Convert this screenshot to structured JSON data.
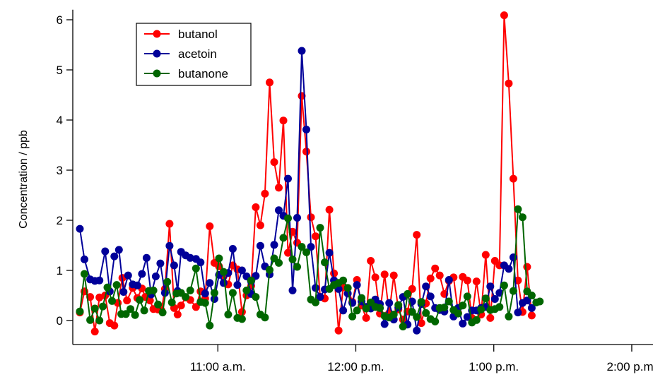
{
  "chart_data": {
    "type": "line",
    "ylabel": "Concentration / ppb",
    "xlabel": "",
    "ylim": [
      -0.4,
      6.2
    ],
    "yticks": [
      0,
      1,
      2,
      3,
      4,
      5,
      6
    ],
    "xlim_minutes": [
      0,
      252
    ],
    "xticks": [
      {
        "minute": 60,
        "label": "11:00 a.m."
      },
      {
        "minute": 120,
        "label": "12:00 p.m."
      },
      {
        "minute": 180,
        "label": "1:00 p.m."
      },
      {
        "minute": 240,
        "label": "2:00 p.m."
      }
    ],
    "grid": false,
    "legend_position": "top-left",
    "series": [
      {
        "name": "butanol",
        "color": "#ff0000",
        "points": [
          [
            0,
            0.16
          ],
          [
            2,
            0.58
          ],
          [
            4.5,
            0.47
          ],
          [
            6.5,
            -0.22
          ],
          [
            8.5,
            0.46
          ],
          [
            11,
            0.5
          ],
          [
            13,
            -0.05
          ],
          [
            15,
            -0.1
          ],
          [
            16.5,
            0.35
          ],
          [
            18.5,
            0.85
          ],
          [
            20.5,
            0.4
          ],
          [
            23,
            0.65
          ],
          [
            25,
            0.45
          ],
          [
            27,
            0.64
          ],
          [
            28.5,
            0.47
          ],
          [
            30.5,
            0.4
          ],
          [
            32,
            0.23
          ],
          [
            34,
            0.22
          ],
          [
            35.5,
            0.2
          ],
          [
            37,
            0.63
          ],
          [
            39,
            1.93
          ],
          [
            41,
            0.25
          ],
          [
            42.5,
            0.12
          ],
          [
            44,
            0.3
          ],
          [
            46,
            0.46
          ],
          [
            48,
            0.41
          ],
          [
            50.5,
            0.27
          ],
          [
            52.5,
            0.58
          ],
          [
            54.5,
            0.44
          ],
          [
            56.5,
            1.88
          ],
          [
            58.5,
            1.15
          ],
          [
            60.5,
            1.08
          ],
          [
            62.5,
            0.88
          ],
          [
            64.5,
            0.72
          ],
          [
            66.5,
            1.1
          ],
          [
            68.5,
            1.02
          ],
          [
            70.5,
            0.17
          ],
          [
            72.5,
            0.5
          ],
          [
            74.5,
            0.69
          ],
          [
            76.5,
            2.26
          ],
          [
            78.5,
            1.9
          ],
          [
            80.5,
            2.53
          ],
          [
            82.5,
            4.75
          ],
          [
            84.5,
            3.16
          ],
          [
            86.5,
            2.65
          ],
          [
            88.5,
            3.99
          ],
          [
            90.5,
            1.35
          ],
          [
            92.5,
            1.77
          ],
          [
            94.5,
            1.55
          ],
          [
            96.5,
            4.48
          ],
          [
            98.5,
            3.37
          ],
          [
            100.5,
            2.06
          ],
          [
            102.5,
            1.68
          ],
          [
            104.5,
            0.47
          ],
          [
            106.5,
            0.44
          ],
          [
            108.5,
            2.21
          ],
          [
            110.5,
            0.94
          ],
          [
            112.5,
            -0.2
          ],
          [
            114.5,
            0.66
          ],
          [
            116.5,
            0.65
          ],
          [
            118.5,
            0.37
          ],
          [
            120.5,
            0.81
          ],
          [
            122.5,
            0.3
          ],
          [
            124.5,
            0.05
          ],
          [
            126.5,
            1.19
          ],
          [
            128.5,
            0.86
          ],
          [
            130.5,
            0.14
          ],
          [
            132.5,
            0.92
          ],
          [
            134.5,
            0.15
          ],
          [
            136.5,
            0.9
          ],
          [
            138.5,
            0.22
          ],
          [
            140.5,
            0.02
          ],
          [
            142.5,
            0.18
          ],
          [
            144.5,
            0.63
          ],
          [
            146.5,
            1.71
          ],
          [
            148.5,
            -0.05
          ],
          [
            150.5,
            0.34
          ],
          [
            152.5,
            0.84
          ],
          [
            154.5,
            1.04
          ],
          [
            156.5,
            0.9
          ],
          [
            158.5,
            0.53
          ],
          [
            160.5,
            0.79
          ],
          [
            162.5,
            0.86
          ],
          [
            164.5,
            0.15
          ],
          [
            166.5,
            0.87
          ],
          [
            168.5,
            0.8
          ],
          [
            170.5,
            0.05
          ],
          [
            172.5,
            0.78
          ],
          [
            174.5,
            0.12
          ],
          [
            176.5,
            1.31
          ],
          [
            178.5,
            0.05
          ],
          [
            180.5,
            1.19
          ],
          [
            182.5,
            1.1
          ],
          [
            184.5,
            6.09
          ],
          [
            186.5,
            4.73
          ],
          [
            188.5,
            2.83
          ],
          [
            190.5,
            0.8
          ],
          [
            192.5,
            0.17
          ],
          [
            194.5,
            1.07
          ],
          [
            196.5,
            0.1
          ]
        ]
      },
      {
        "name": "acetoin",
        "color": "#000099",
        "points": [
          [
            0,
            1.83
          ],
          [
            2,
            1.22
          ],
          [
            4.5,
            0.82
          ],
          [
            6.5,
            0.79
          ],
          [
            8.5,
            0.8
          ],
          [
            11,
            1.38
          ],
          [
            13,
            0.58
          ],
          [
            15,
            1.28
          ],
          [
            17,
            1.41
          ],
          [
            19,
            0.57
          ],
          [
            21,
            0.9
          ],
          [
            23,
            0.72
          ],
          [
            25,
            0.7
          ],
          [
            27,
            0.93
          ],
          [
            29,
            1.25
          ],
          [
            31,
            0.52
          ],
          [
            33,
            0.88
          ],
          [
            35,
            1.14
          ],
          [
            37,
            0.55
          ],
          [
            39,
            1.49
          ],
          [
            41,
            1.1
          ],
          [
            42.5,
            0.59
          ],
          [
            44,
            1.37
          ],
          [
            46,
            1.3
          ],
          [
            48,
            1.25
          ],
          [
            50.5,
            1.23
          ],
          [
            52.5,
            1.16
          ],
          [
            54.5,
            0.54
          ],
          [
            56.5,
            0.75
          ],
          [
            58.5,
            0.43
          ],
          [
            60.5,
            0.91
          ],
          [
            62.5,
            0.75
          ],
          [
            64.5,
            0.95
          ],
          [
            66.5,
            1.43
          ],
          [
            68.5,
            0.71
          ],
          [
            70.5,
            1.0
          ],
          [
            72.5,
            0.88
          ],
          [
            74.5,
            0.53
          ],
          [
            76.5,
            0.89
          ],
          [
            78.5,
            1.49
          ],
          [
            80.5,
            1.08
          ],
          [
            82.5,
            0.92
          ],
          [
            84.5,
            1.51
          ],
          [
            86.5,
            2.2
          ],
          [
            88.5,
            2.09
          ],
          [
            90.5,
            2.83
          ],
          [
            92.5,
            0.6
          ],
          [
            94.5,
            2.05
          ],
          [
            96.5,
            5.38
          ],
          [
            98.5,
            3.81
          ],
          [
            100.5,
            1.47
          ],
          [
            102.5,
            0.65
          ],
          [
            104.5,
            0.47
          ],
          [
            106.5,
            0.62
          ],
          [
            108.5,
            1.35
          ],
          [
            110.5,
            0.8
          ],
          [
            112.5,
            0.63
          ],
          [
            114.5,
            0.2
          ],
          [
            116.5,
            0.54
          ],
          [
            118.5,
            0.35
          ],
          [
            120.5,
            0.71
          ],
          [
            122.5,
            0.38
          ],
          [
            124.5,
            0.27
          ],
          [
            126.5,
            0.24
          ],
          [
            128.5,
            0.42
          ],
          [
            130.5,
            0.33
          ],
          [
            132.5,
            -0.07
          ],
          [
            134.5,
            0.35
          ],
          [
            136.5,
            0.02
          ],
          [
            138.5,
            0.26
          ],
          [
            140.5,
            0.47
          ],
          [
            142.5,
            -0.08
          ],
          [
            144.5,
            0.38
          ],
          [
            146.5,
            -0.2
          ],
          [
            148.5,
            0.33
          ],
          [
            150.5,
            0.68
          ],
          [
            152.5,
            0.48
          ],
          [
            154.5,
            0.25
          ],
          [
            156.5,
            0.21
          ],
          [
            158.5,
            0.18
          ],
          [
            160.5,
            0.81
          ],
          [
            162.5,
            0.08
          ],
          [
            164.5,
            0.25
          ],
          [
            166.5,
            -0.06
          ],
          [
            168.5,
            0.07
          ],
          [
            170.5,
            0.2
          ],
          [
            172.5,
            0.2
          ],
          [
            174.5,
            0.25
          ],
          [
            176.5,
            0.27
          ],
          [
            178.5,
            0.68
          ],
          [
            180.5,
            0.43
          ],
          [
            182.5,
            0.55
          ],
          [
            184.5,
            1.1
          ],
          [
            186.5,
            1.03
          ],
          [
            188.5,
            1.26
          ],
          [
            190.5,
            0.16
          ],
          [
            192.5,
            0.35
          ],
          [
            194.5,
            0.4
          ],
          [
            196.5,
            0.25
          ]
        ]
      },
      {
        "name": "butanone",
        "color": "#006600",
        "points": [
          [
            0,
            0.18
          ],
          [
            2,
            0.93
          ],
          [
            4.5,
            0.01
          ],
          [
            6.5,
            0.24
          ],
          [
            8.5,
            0.0
          ],
          [
            10,
            0.28
          ],
          [
            12,
            0.66
          ],
          [
            14,
            0.39
          ],
          [
            16,
            0.71
          ],
          [
            18,
            0.13
          ],
          [
            20,
            0.13
          ],
          [
            22,
            0.23
          ],
          [
            24,
            0.11
          ],
          [
            26,
            0.41
          ],
          [
            28,
            0.2
          ],
          [
            30,
            0.59
          ],
          [
            32,
            0.6
          ],
          [
            34,
            0.32
          ],
          [
            36,
            0.16
          ],
          [
            38,
            0.77
          ],
          [
            40,
            0.36
          ],
          [
            42,
            0.54
          ],
          [
            44,
            0.55
          ],
          [
            46,
            0.47
          ],
          [
            48,
            0.6
          ],
          [
            50.5,
            1.04
          ],
          [
            52.5,
            0.37
          ],
          [
            54.5,
            0.35
          ],
          [
            56.5,
            -0.1
          ],
          [
            58.5,
            0.55
          ],
          [
            60.5,
            1.24
          ],
          [
            62.5,
            0.97
          ],
          [
            64.5,
            0.12
          ],
          [
            66.5,
            0.55
          ],
          [
            68.5,
            0.05
          ],
          [
            70.5,
            0.03
          ],
          [
            72.5,
            0.6
          ],
          [
            74.5,
            0.8
          ],
          [
            76.5,
            0.47
          ],
          [
            78.5,
            0.12
          ],
          [
            80.5,
            0.06
          ],
          [
            82.5,
            1.01
          ],
          [
            84.5,
            1.24
          ],
          [
            86.5,
            1.15
          ],
          [
            88.5,
            1.65
          ],
          [
            90.5,
            2.04
          ],
          [
            92.5,
            1.22
          ],
          [
            94.5,
            1.07
          ],
          [
            96.5,
            1.47
          ],
          [
            98.5,
            1.36
          ],
          [
            100.5,
            0.42
          ],
          [
            102.5,
            0.36
          ],
          [
            104.5,
            1.85
          ],
          [
            106.5,
            1.16
          ],
          [
            108.5,
            0.63
          ],
          [
            110.5,
            0.71
          ],
          [
            112.5,
            0.75
          ],
          [
            114.5,
            0.8
          ],
          [
            116.5,
            0.65
          ],
          [
            118.5,
            0.08
          ],
          [
            120.5,
            0.2
          ],
          [
            122.5,
            0.45
          ],
          [
            124.5,
            0.24
          ],
          [
            126.5,
            0.36
          ],
          [
            128.5,
            0.27
          ],
          [
            130.5,
            0.25
          ],
          [
            132.5,
            0.09
          ],
          [
            134.5,
            0.06
          ],
          [
            136.5,
            0.12
          ],
          [
            138.5,
            0.31
          ],
          [
            140.5,
            -0.12
          ],
          [
            142.5,
            0.53
          ],
          [
            144.5,
            0.17
          ],
          [
            146.5,
            0.07
          ],
          [
            148.5,
            0.37
          ],
          [
            150.5,
            0.15
          ],
          [
            152.5,
            0.03
          ],
          [
            154.5,
            -0.02
          ],
          [
            156.5,
            0.25
          ],
          [
            158.5,
            0.26
          ],
          [
            160.5,
            0.38
          ],
          [
            162.5,
            0.21
          ],
          [
            164.5,
            0.14
          ],
          [
            166.5,
            0.3
          ],
          [
            168.5,
            0.48
          ],
          [
            170.5,
            -0.04
          ],
          [
            172.5,
            0.01
          ],
          [
            174.5,
            0.22
          ],
          [
            176.5,
            0.44
          ],
          [
            178.5,
            0.21
          ],
          [
            180.5,
            0.23
          ],
          [
            182.5,
            0.27
          ],
          [
            184.5,
            0.7
          ],
          [
            186.5,
            0.08
          ],
          [
            188.5,
            0.59
          ],
          [
            190.5,
            2.22
          ],
          [
            192.5,
            2.06
          ],
          [
            194.5,
            0.58
          ],
          [
            196.5,
            0.5
          ],
          [
            198.5,
            0.36
          ],
          [
            200,
            0.38
          ]
        ]
      }
    ]
  }
}
